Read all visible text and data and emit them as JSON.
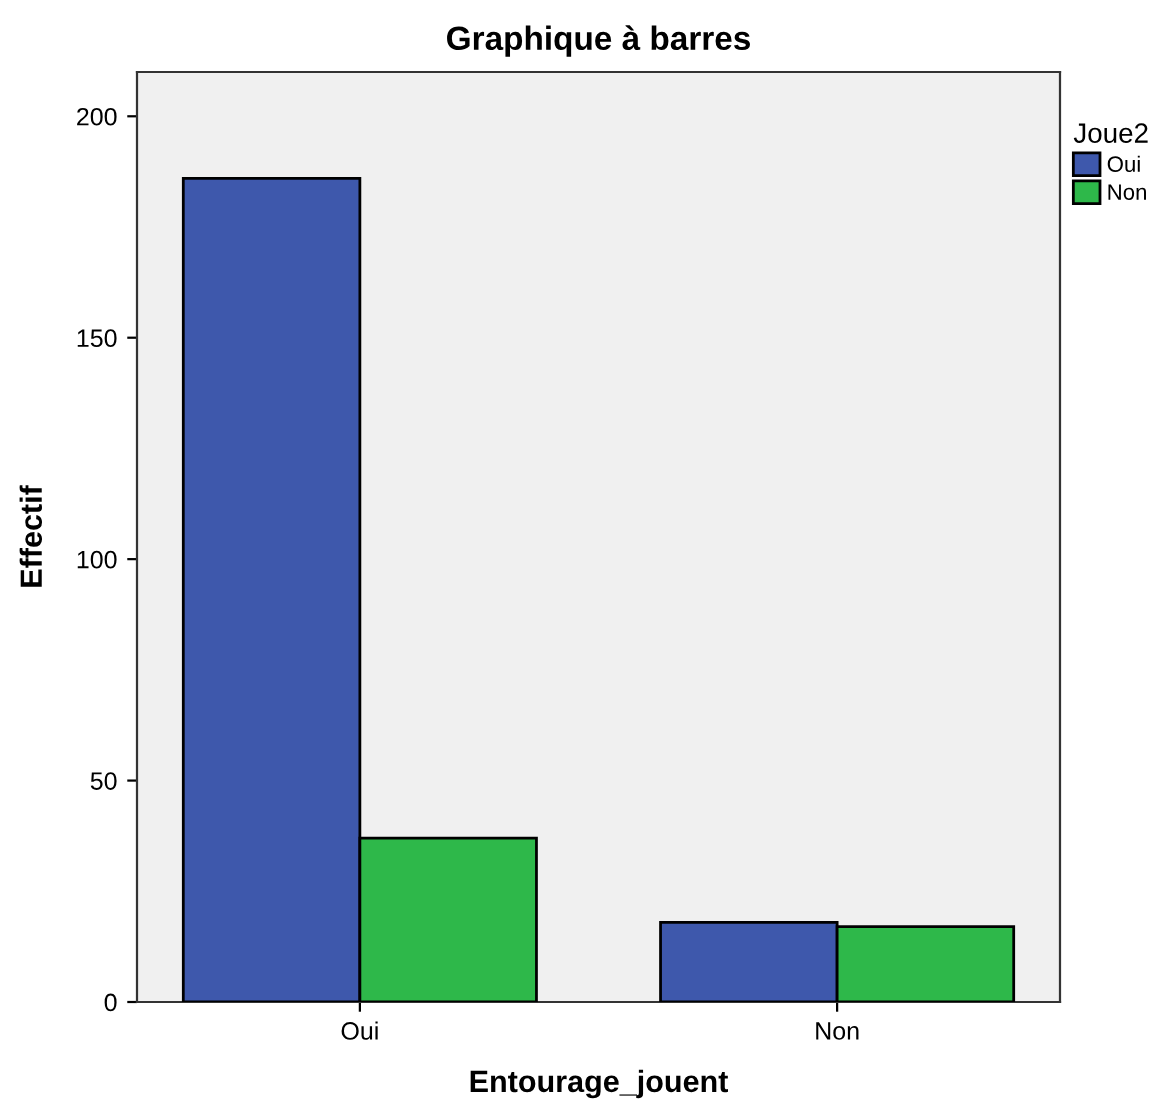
{
  "chart_data": {
    "type": "bar",
    "title": "Graphique à barres",
    "xlabel": "Entourage_jouent",
    "ylabel": "Effectif",
    "legend_title": "Joue2",
    "categories": [
      "Oui",
      "Non"
    ],
    "series": [
      {
        "name": "Oui",
        "color": "#3e58ac",
        "values": [
          186,
          18
        ]
      },
      {
        "name": "Non",
        "color": "#2eb84a",
        "values": [
          37,
          17
        ]
      }
    ],
    "ylim": [
      0,
      210
    ],
    "yticks": [
      0,
      50,
      100,
      150,
      200
    ],
    "grid": false,
    "legend": "top right"
  }
}
